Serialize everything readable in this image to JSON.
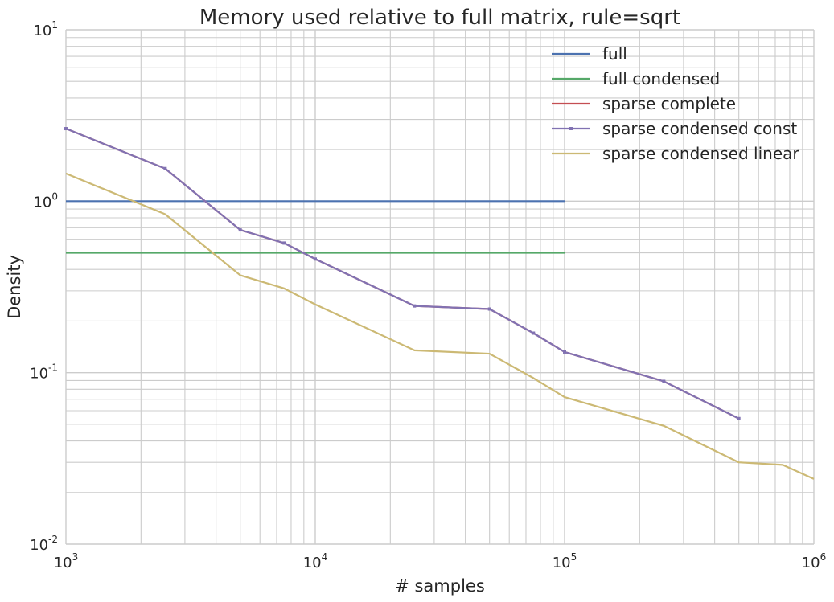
{
  "chart_data": {
    "type": "line",
    "title": "Memory used relative to full matrix, rule=sqrt",
    "xlabel": "# samples",
    "ylabel": "Density",
    "xscale": "log",
    "yscale": "log",
    "xlim": [
      1000,
      1000000
    ],
    "ylim": [
      0.01,
      10
    ],
    "grid": true,
    "legend_position": "top-right",
    "x_ticks": [
      {
        "base": "10",
        "exp": "3",
        "value": 1000
      },
      {
        "base": "10",
        "exp": "4",
        "value": 10000
      },
      {
        "base": "10",
        "exp": "5",
        "value": 100000
      },
      {
        "base": "10",
        "exp": "6",
        "value": 1000000
      }
    ],
    "y_ticks": [
      {
        "base": "10",
        "exp": "-2",
        "value": 0.01
      },
      {
        "base": "10",
        "exp": "-1",
        "value": 0.1
      },
      {
        "base": "10",
        "exp": "0",
        "value": 1
      },
      {
        "base": "10",
        "exp": "1",
        "value": 10
      }
    ],
    "series": [
      {
        "name": "full",
        "color": "#4c72b0",
        "marker": "none",
        "x": [
          1000,
          100000
        ],
        "y": [
          1.0,
          1.0
        ]
      },
      {
        "name": "full condensed",
        "color": "#55a868",
        "marker": "none",
        "x": [
          1000,
          100000
        ],
        "y": [
          0.5,
          0.5
        ]
      },
      {
        "name": "sparse complete",
        "color": "#c44e52",
        "marker": "none",
        "x": [
          1000,
          2500,
          5000,
          7500,
          10000,
          25000,
          50000,
          75000,
          100000,
          250000,
          500000
        ],
        "y": [
          2.65,
          1.55,
          0.68,
          0.57,
          0.46,
          0.245,
          0.235,
          0.17,
          0.132,
          0.089,
          0.054
        ]
      },
      {
        "name": "sparse condensed const",
        "color": "#8172b2",
        "marker": "square",
        "x": [
          1000,
          2500,
          5000,
          7500,
          10000,
          25000,
          50000,
          75000,
          100000,
          250000,
          500000
        ],
        "y": [
          2.65,
          1.55,
          0.68,
          0.57,
          0.46,
          0.245,
          0.235,
          0.17,
          0.132,
          0.089,
          0.054
        ]
      },
      {
        "name": "sparse condensed linear",
        "color": "#ccb974",
        "marker": "none",
        "x": [
          1000,
          2500,
          5000,
          7500,
          10000,
          25000,
          50000,
          75000,
          100000,
          250000,
          500000,
          750000,
          1000000
        ],
        "y": [
          1.45,
          0.84,
          0.37,
          0.31,
          0.25,
          0.135,
          0.129,
          0.093,
          0.072,
          0.049,
          0.03,
          0.029,
          0.024
        ]
      }
    ]
  }
}
